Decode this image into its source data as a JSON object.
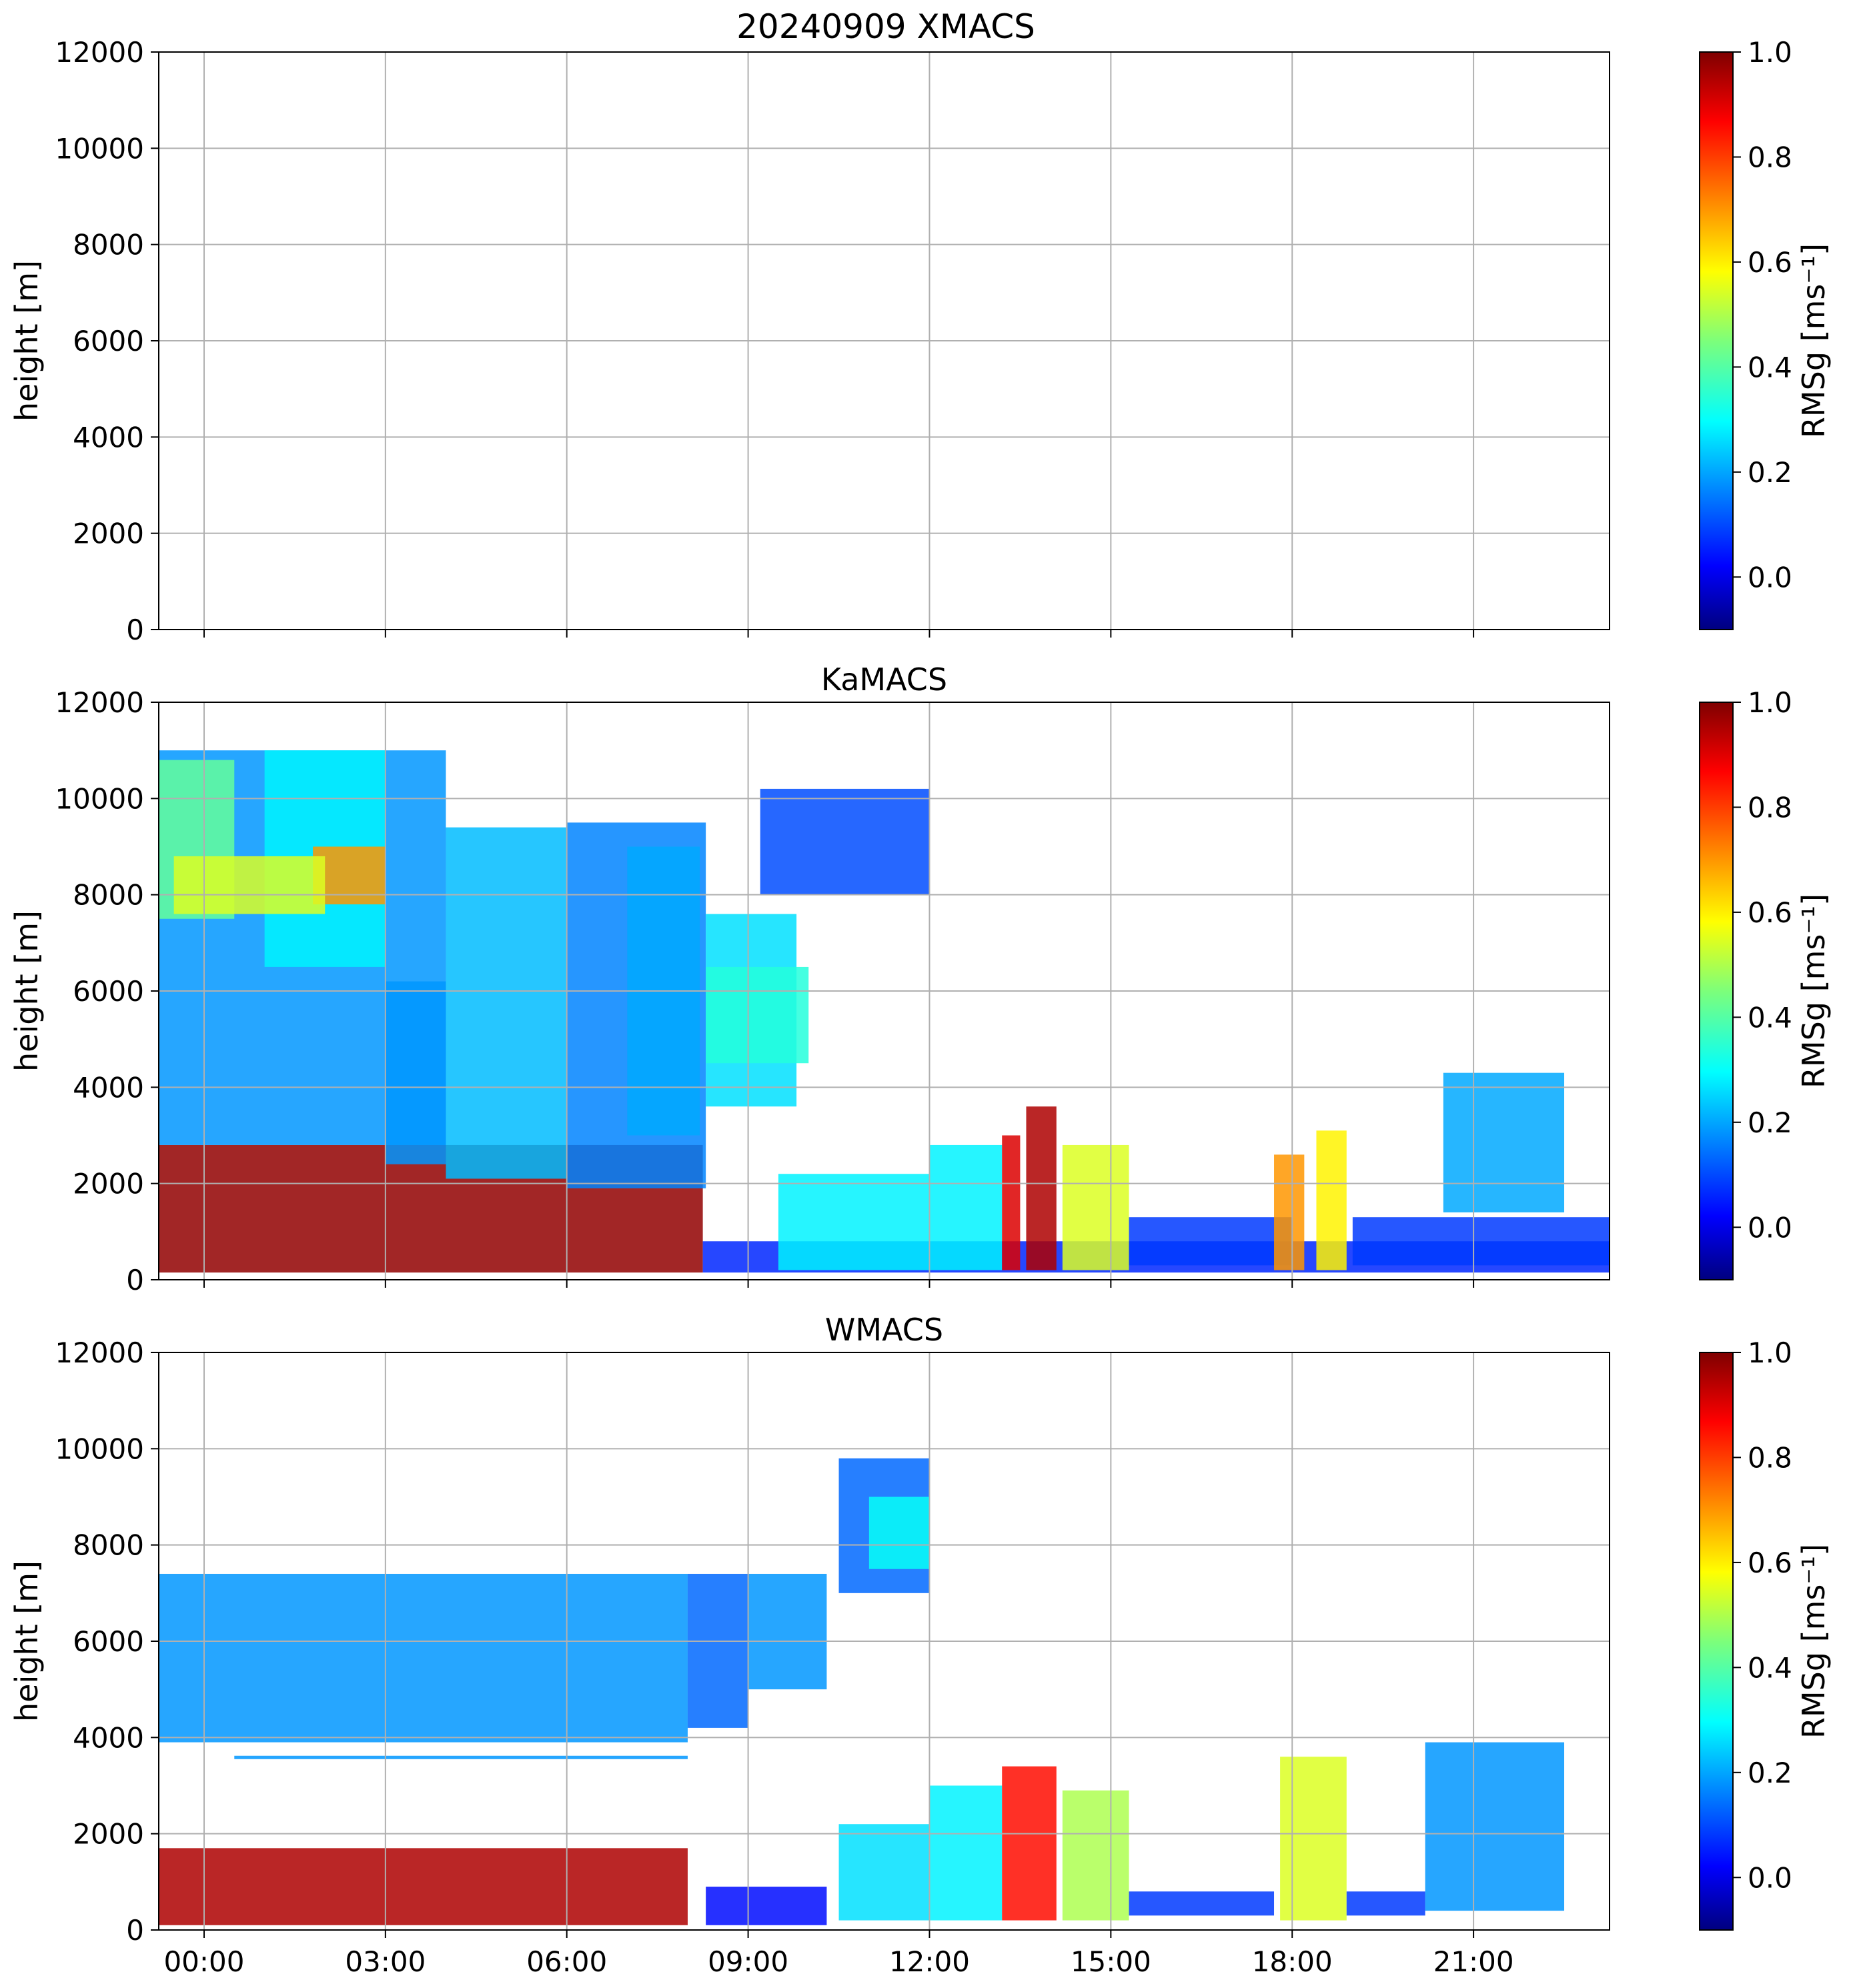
{
  "figure_title": "20240909 XMACS",
  "colorbar": {
    "label": "RMSg [ms⁻¹]",
    "ticks": [
      "0.0",
      "0.2",
      "0.4",
      "0.6",
      "0.8",
      "1.0"
    ],
    "range": [
      -0.1,
      1.0
    ],
    "colormap": "jet"
  },
  "chart_data": [
    {
      "type": "heatmap",
      "title": "",
      "ylabel": "height [m]",
      "xlabel": "",
      "x_ticks": [
        "00:00",
        "03:00",
        "06:00",
        "09:00",
        "12:00",
        "15:00",
        "18:00",
        "21:00"
      ],
      "show_x_ticklabels": false,
      "x_range_hours": [
        -0.75,
        23.25
      ],
      "y_ticks": [
        0,
        2000,
        4000,
        6000,
        8000,
        10000,
        12000
      ],
      "ylim": [
        0,
        12000
      ],
      "grid": true,
      "colorbar_label": "RMSg [ms⁻¹]",
      "regions": []
    },
    {
      "type": "heatmap",
      "title": "KaMACS",
      "ylabel": "height [m]",
      "xlabel": "",
      "x_ticks": [
        "00:00",
        "03:00",
        "06:00",
        "09:00",
        "12:00",
        "15:00",
        "18:00",
        "21:00"
      ],
      "show_x_ticklabels": false,
      "x_range_hours": [
        -0.75,
        23.25
      ],
      "y_ticks": [
        0,
        2000,
        4000,
        6000,
        8000,
        10000,
        12000
      ],
      "ylim": [
        0,
        12000
      ],
      "grid": true,
      "colorbar_label": "RMSg [ms⁻¹]",
      "regions": [
        {
          "t0": -0.75,
          "t1": 8.25,
          "h0": 150,
          "h1": 2800,
          "value": 0.98
        },
        {
          "t0": -0.75,
          "t1": 4.0,
          "h0": 2800,
          "h1": 11000,
          "value": 0.2
        },
        {
          "t0": -0.75,
          "t1": 0.5,
          "h0": 7500,
          "h1": 10800,
          "value": 0.42
        },
        {
          "t0": 1.0,
          "t1": 3.0,
          "h0": 6500,
          "h1": 11000,
          "value": 0.3
        },
        {
          "t0": 1.8,
          "t1": 3.0,
          "h0": 7800,
          "h1": 9000,
          "value": 0.7
        },
        {
          "t0": -0.5,
          "t1": 2.0,
          "h0": 7600,
          "h1": 8800,
          "value": 0.55
        },
        {
          "t0": 3.0,
          "t1": 4.0,
          "h0": 2400,
          "h1": 6200,
          "value": 0.2
        },
        {
          "t0": 4.0,
          "t1": 6.0,
          "h0": 2100,
          "h1": 9400,
          "value": 0.24
        },
        {
          "t0": 6.0,
          "t1": 8.3,
          "h0": 1900,
          "h1": 9500,
          "value": 0.18
        },
        {
          "t0": 7.0,
          "t1": 8.2,
          "h0": 3000,
          "h1": 9000,
          "value": 0.22
        },
        {
          "t0": 8.3,
          "t1": 9.8,
          "h0": 3600,
          "h1": 7600,
          "value": 0.28
        },
        {
          "t0": 8.3,
          "t1": 10.0,
          "h0": 4500,
          "h1": 6500,
          "value": 0.35
        },
        {
          "t0": 9.2,
          "t1": 12.0,
          "h0": 8000,
          "h1": 10200,
          "value": 0.12
        },
        {
          "t0": 8.25,
          "t1": 23.25,
          "h0": 150,
          "h1": 800,
          "value": 0.08
        },
        {
          "t0": 9.5,
          "t1": 12.0,
          "h0": 200,
          "h1": 2200,
          "value": 0.3
        },
        {
          "t0": 12.0,
          "t1": 13.2,
          "h0": 200,
          "h1": 2800,
          "value": 0.3
        },
        {
          "t0": 13.2,
          "t1": 13.5,
          "h0": 200,
          "h1": 3000,
          "value": 0.9
        },
        {
          "t0": 13.6,
          "t1": 14.1,
          "h0": 200,
          "h1": 3600,
          "value": 0.95
        },
        {
          "t0": 14.2,
          "t1": 15.3,
          "h0": 200,
          "h1": 2800,
          "value": 0.55
        },
        {
          "t0": 15.3,
          "t1": 18.0,
          "h0": 300,
          "h1": 1300,
          "value": 0.1
        },
        {
          "t0": 17.7,
          "t1": 18.2,
          "h0": 200,
          "h1": 2600,
          "value": 0.7
        },
        {
          "t0": 18.4,
          "t1": 18.9,
          "h0": 200,
          "h1": 3100,
          "value": 0.6
        },
        {
          "t0": 20.5,
          "t1": 22.5,
          "h0": 1400,
          "h1": 4300,
          "value": 0.22
        },
        {
          "t0": 19.0,
          "t1": 23.25,
          "h0": 300,
          "h1": 1300,
          "value": 0.1
        }
      ]
    },
    {
      "type": "heatmap",
      "title": "WMACS",
      "ylabel": "height [m]",
      "xlabel": "",
      "x_ticks": [
        "00:00",
        "03:00",
        "06:00",
        "09:00",
        "12:00",
        "15:00",
        "18:00",
        "21:00"
      ],
      "show_x_ticklabels": true,
      "x_range_hours": [
        -0.75,
        23.25
      ],
      "y_ticks": [
        0,
        2000,
        4000,
        6000,
        8000,
        10000,
        12000
      ],
      "ylim": [
        0,
        12000
      ],
      "grid": true,
      "colorbar_label": "RMSg [ms⁻¹]",
      "regions": [
        {
          "t0": -0.75,
          "t1": 8.0,
          "h0": 100,
          "h1": 1700,
          "value": 0.95
        },
        {
          "t0": -0.75,
          "t1": 8.0,
          "h0": 3900,
          "h1": 7400,
          "value": 0.2
        },
        {
          "t0": 0.5,
          "t1": 8.0,
          "h0": 3550,
          "h1": 3620,
          "value": 0.2
        },
        {
          "t0": 8.0,
          "t1": 9.0,
          "h0": 4200,
          "h1": 7400,
          "value": 0.15
        },
        {
          "t0": 9.0,
          "t1": 10.3,
          "h0": 5000,
          "h1": 7400,
          "value": 0.2
        },
        {
          "t0": 10.5,
          "t1": 12.0,
          "h0": 7000,
          "h1": 9800,
          "value": 0.15
        },
        {
          "t0": 11.0,
          "t1": 12.0,
          "h0": 7500,
          "h1": 9000,
          "value": 0.32
        },
        {
          "t0": 8.3,
          "t1": 10.3,
          "h0": 100,
          "h1": 900,
          "value": 0.05
        },
        {
          "t0": 10.5,
          "t1": 12.0,
          "h0": 200,
          "h1": 2200,
          "value": 0.28
        },
        {
          "t0": 12.0,
          "t1": 13.2,
          "h0": 200,
          "h1": 3000,
          "value": 0.3
        },
        {
          "t0": 13.2,
          "t1": 14.1,
          "h0": 200,
          "h1": 3400,
          "value": 0.85
        },
        {
          "t0": 14.2,
          "t1": 15.3,
          "h0": 200,
          "h1": 2900,
          "value": 0.5
        },
        {
          "t0": 15.3,
          "t1": 17.7,
          "h0": 300,
          "h1": 800,
          "value": 0.1
        },
        {
          "t0": 17.8,
          "t1": 18.9,
          "h0": 200,
          "h1": 3600,
          "value": 0.55
        },
        {
          "t0": 18.9,
          "t1": 20.2,
          "h0": 300,
          "h1": 800,
          "value": 0.1
        },
        {
          "t0": 20.2,
          "t1": 22.5,
          "h0": 400,
          "h1": 3900,
          "value": 0.2
        }
      ]
    }
  ]
}
